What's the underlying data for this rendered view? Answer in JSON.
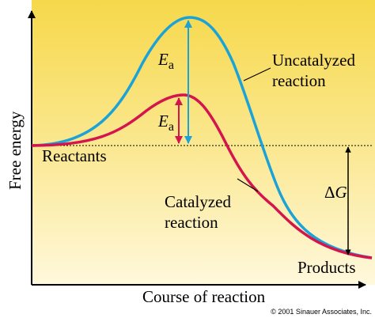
{
  "diagram": {
    "y_axis_label": "Free energy",
    "x_axis_label": "Course of reaction",
    "reactants_label": "Reactants",
    "products_label": "Products",
    "uncatalyzed_line1": "Uncatalyzed",
    "uncatalyzed_line2": "reaction",
    "catalyzed_line1": "Catalyzed",
    "catalyzed_line2": "reaction",
    "ea_symbol": "E",
    "ea_subscript": "a",
    "delta_symbol": "Δ",
    "delta_var": "G",
    "copyright": "© 2001 Sinauer Associates, Inc."
  },
  "colors": {
    "background_top": "#F6D84A",
    "background_bottom": "#FFF8DC",
    "uncatalyzed_curve": "#1BA3D8",
    "catalyzed_curve": "#D4154D",
    "axis": "#000000"
  }
}
